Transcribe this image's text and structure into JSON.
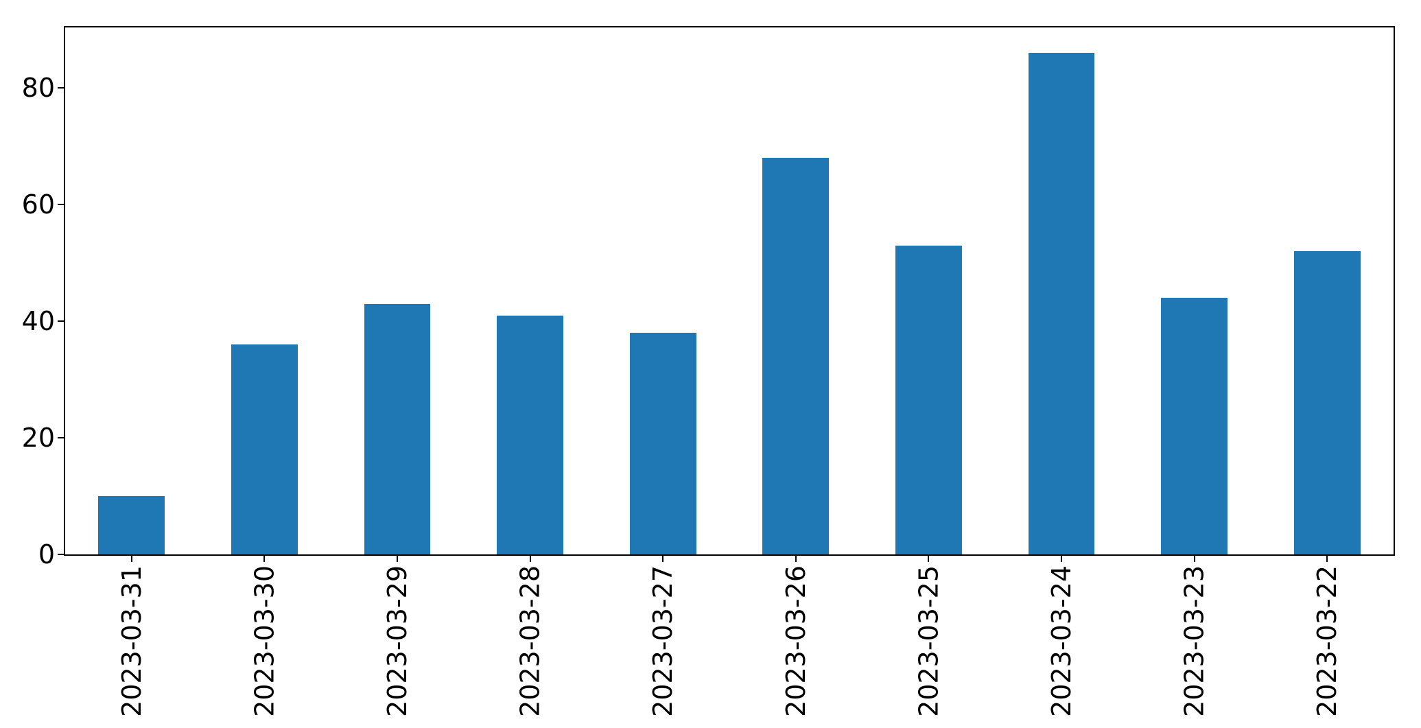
{
  "figure": {
    "background": "#ffffff"
  },
  "chart_data": {
    "type": "bar",
    "title": "",
    "xlabel": "",
    "ylabel": "",
    "categories": [
      "2023-03-31",
      "2023-03-30",
      "2023-03-29",
      "2023-03-28",
      "2023-03-27",
      "2023-03-26",
      "2023-03-25",
      "2023-03-24",
      "2023-03-23",
      "2023-03-22"
    ],
    "values": [
      10,
      36,
      43,
      41,
      38,
      68,
      53,
      86,
      44,
      52
    ],
    "yticks": [
      0,
      20,
      40,
      60,
      80
    ],
    "ylim": [
      0,
      90.4
    ],
    "bar_color": "#1f77b4",
    "axis_color": "#000000",
    "grid": false,
    "legend": false,
    "x_tick_rotation": 90,
    "bar_width_fraction": 0.5
  }
}
